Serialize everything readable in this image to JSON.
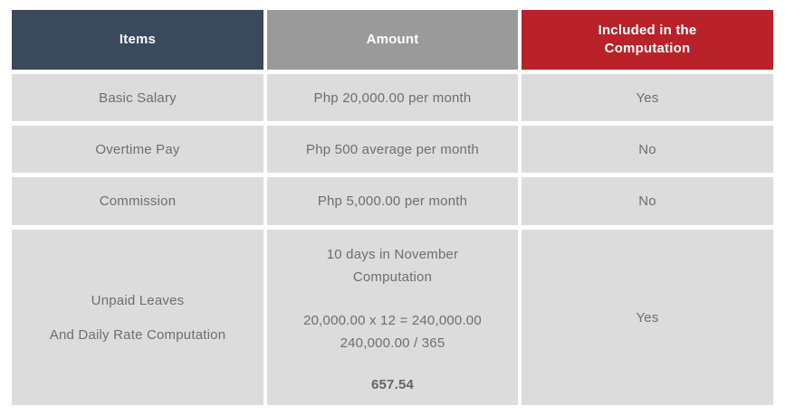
{
  "colors": {
    "header_items_bg": "#3A495C",
    "header_amount_bg": "#9A9A9A",
    "header_included_bg": "#B92228",
    "cell_bg": "#DCDCDC",
    "header_text": "#FFFFFF",
    "body_text": "#6E6E6E"
  },
  "table": {
    "headers": {
      "items": "Items",
      "amount": "Amount",
      "included_line1": "Included in the",
      "included_line2": "Computation"
    },
    "rows": {
      "basic_salary": {
        "item": "Basic Salary",
        "amount": "Php 20,000.00 per month",
        "included": "Yes"
      },
      "overtime_pay": {
        "item": "Overtime Pay",
        "amount": "Php 500 average per month",
        "included": "No"
      },
      "commission": {
        "item": "Commission",
        "amount": "Php 5,000.00 per month",
        "included": "No"
      },
      "unpaid_leaves": {
        "item_line1": "Unpaid Leaves",
        "item_line2": "And Daily Rate Computation",
        "amount_note_line1": "10 days in November",
        "amount_note_line2": "Computation",
        "amount_calc_line1": "20,000.00 x 12 = 240,000.00",
        "amount_calc_line2": "240,000.00 / 365",
        "amount_result": "657.54",
        "included": "Yes"
      }
    }
  }
}
